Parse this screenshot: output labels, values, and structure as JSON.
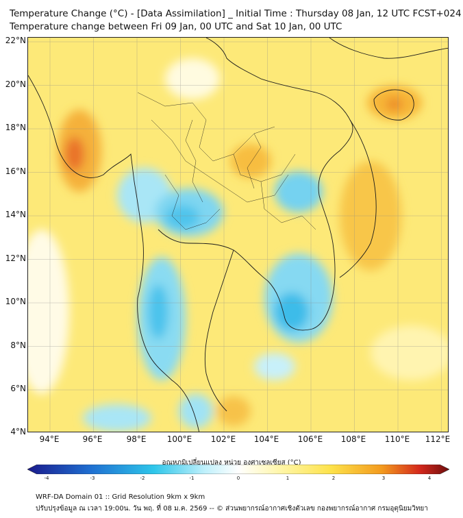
{
  "title": {
    "line1": "Temperature Change (°C) - [Data Assimilation] _ Initial Time : Thursday 08 Jan, 12 UTC FCST+024",
    "line2": "Temperature change between Fri 09 Jan, 00 UTC and Sat 10 Jan, 00 UTC"
  },
  "axes": {
    "lon_labels": [
      "94°E",
      "96°E",
      "98°E",
      "100°E",
      "102°E",
      "104°E",
      "106°E",
      "108°E",
      "110°E",
      "112°E"
    ],
    "lat_labels": [
      "22°N",
      "20°N",
      "18°N",
      "16°N",
      "14°N",
      "12°N",
      "10°N",
      "8°N",
      "6°N",
      "4°N"
    ],
    "lon_range": [
      93,
      112.3
    ],
    "lat_range": [
      4,
      22.2
    ],
    "grid": true
  },
  "colorbar": {
    "title": "อุณหภูมิเปลี่ยนแปลง หน่วย องศาเซลเซียส (°C)",
    "ticks": [
      "-4",
      "-3",
      "-2",
      "-1",
      "0",
      "1",
      "2",
      "3",
      "4"
    ],
    "colors": {
      "cold_dark": "#1a1a8c",
      "cold_blue": "#1f6fd1",
      "cyan": "#2ec6ea",
      "light_cyan": "#bff0fb",
      "neutral": "#ffffff",
      "light_yellow": "#fff6a8",
      "yellow": "#fde24a",
      "orange": "#f39a1e",
      "red": "#d4281c",
      "dark_red": "#6e0d0d"
    }
  },
  "footer": {
    "line1": "WRF-DA Domain 01 :: Grid Resolution 9km x 9km",
    "line2": "ปรับปรุงข้อมูล ณ เวลา 19:00น. วัน พฤ. ที่ 08 ม.ค. 2569 -- © ส่วนพยากรณ์อากาศเชิงตัวเลข กองพยากรณ์อากาศ กรมอุตุนิยมวิทยา"
  }
}
